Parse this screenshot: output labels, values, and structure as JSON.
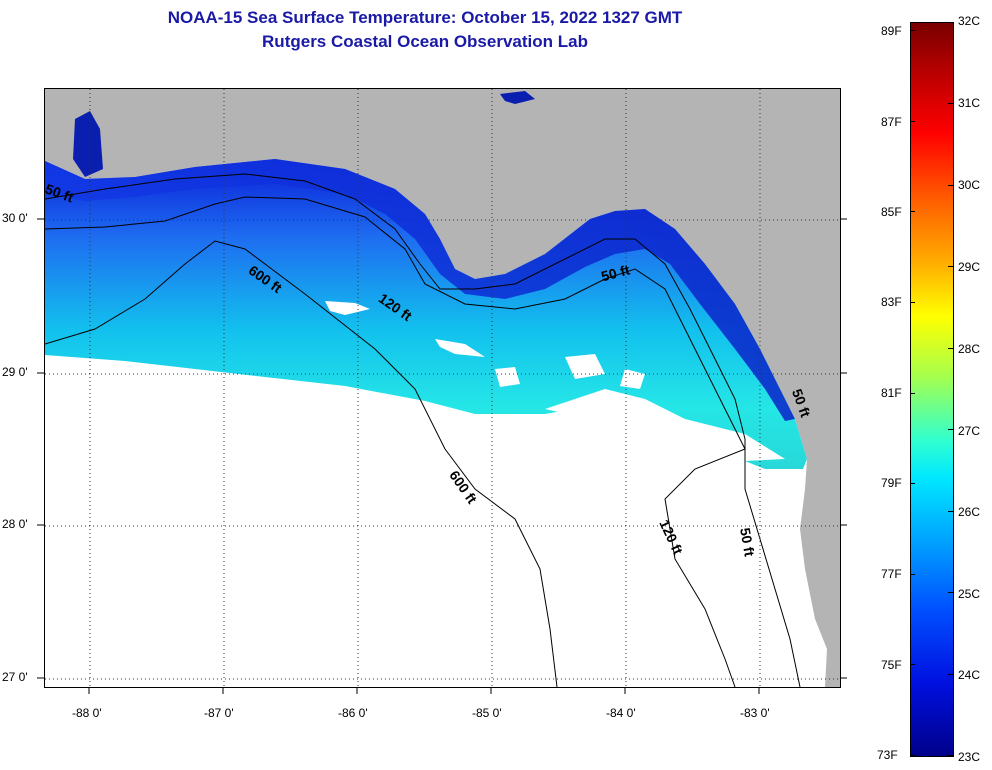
{
  "title": {
    "line1": "NOAA-15 Sea Surface Temperature:  October 15, 2022 1327 GMT",
    "line2": "Rutgers Coastal Ocean Observation Lab"
  },
  "map": {
    "lon_labels": [
      "-88 0'",
      "-87 0'",
      "-86 0'",
      "-85 0'",
      "-84 0'",
      "-83 0'"
    ],
    "lat_labels": [
      "30 0'",
      "29 0'",
      "28 0'",
      "27 0'"
    ],
    "contour_labels": [
      "50 ft",
      "600 ft",
      "120 ft",
      "50 ft",
      "600 ft",
      "120 ft",
      "50 ft",
      "50 ft"
    ],
    "colors": {
      "land": "#b4b4b4",
      "no_data": "#ffffff",
      "grid": "#000000"
    }
  },
  "colorbar": {
    "fahrenheit": [
      "89F",
      "87F",
      "85F",
      "83F",
      "81F",
      "79F",
      "77F",
      "75F",
      "73F"
    ],
    "celsius": [
      "32C",
      "31C",
      "30C",
      "29C",
      "28C",
      "27C",
      "26C",
      "25C",
      "24C",
      "23C"
    ]
  }
}
